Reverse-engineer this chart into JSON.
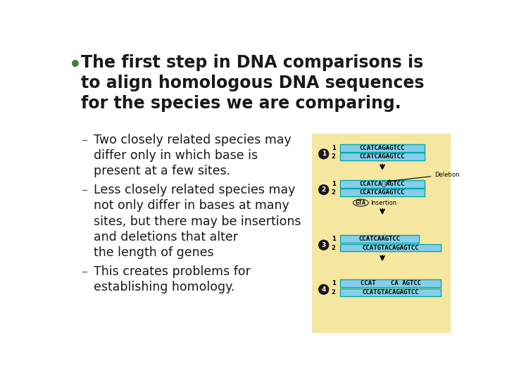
{
  "bg_color": "#ffffff",
  "bullet_color": "#4a7a3a",
  "title_text": "The first step in DNA comparisons is\nto align homologous DNA sequences\nfor the species we are comparing.",
  "title_fontsize": 17,
  "title_color": "#1a1a1a",
  "sub_items": [
    "Two closely related species may\ndiffer only in which base is\npresent at a few sites.",
    "Less closely related species may\nnot only differ in bases at many\nsites, but there may be insertions\nand deletions that alter\nthe length of genes",
    "This creates problems for\nestablishing homology."
  ],
  "sub_fontsize": 12.5,
  "sub_color": "#1a1a1a",
  "dash_color": "#4a7a3a",
  "diagram_bg": "#f5e6a0",
  "seq_bg": "#87ceeb",
  "seq_border": "#00aaaa"
}
